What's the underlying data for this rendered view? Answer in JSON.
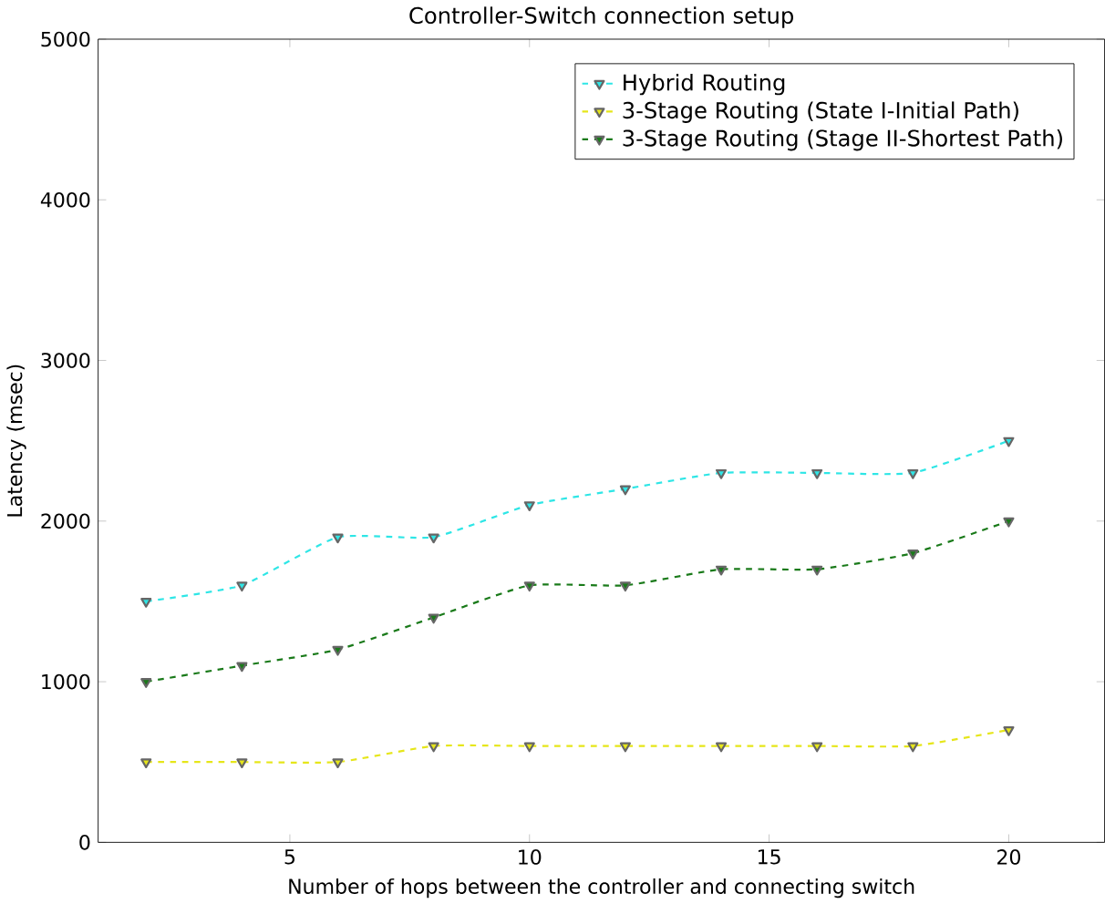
{
  "chart_data": {
    "type": "line",
    "title": "Controller-Switch connection setup",
    "xlabel": "Number of hops between the controller and connecting switch",
    "ylabel": "Latency (msec)",
    "x": [
      2,
      4,
      6,
      8,
      10,
      12,
      14,
      16,
      18,
      20
    ],
    "series": [
      {
        "name": "Hybrid Routing",
        "color": "#2ee6e6",
        "values": [
          1500,
          1600,
          1900,
          1900,
          2100,
          2200,
          2300,
          2300,
          2300,
          2500
        ]
      },
      {
        "name": "3-Stage Routing (State I-Initial Path)",
        "color": "#e6e61a",
        "values": [
          500,
          500,
          500,
          600,
          600,
          600,
          600,
          600,
          600,
          700
        ]
      },
      {
        "name": "3-Stage Routing (Stage II-Shortest Path)",
        "color": "#1a7a1a",
        "values": [
          1000,
          1100,
          1200,
          1400,
          1600,
          1600,
          1700,
          1700,
          1800,
          2000
        ]
      }
    ],
    "xlim": [
      1,
      22
    ],
    "ylim": [
      0,
      5000
    ],
    "xticks": [
      5,
      10,
      15,
      20
    ],
    "yticks": [
      0,
      1000,
      2000,
      3000,
      4000,
      5000
    ],
    "grid": false,
    "legend": "top right",
    "marker": "triangle",
    "line_style": "dashed"
  }
}
